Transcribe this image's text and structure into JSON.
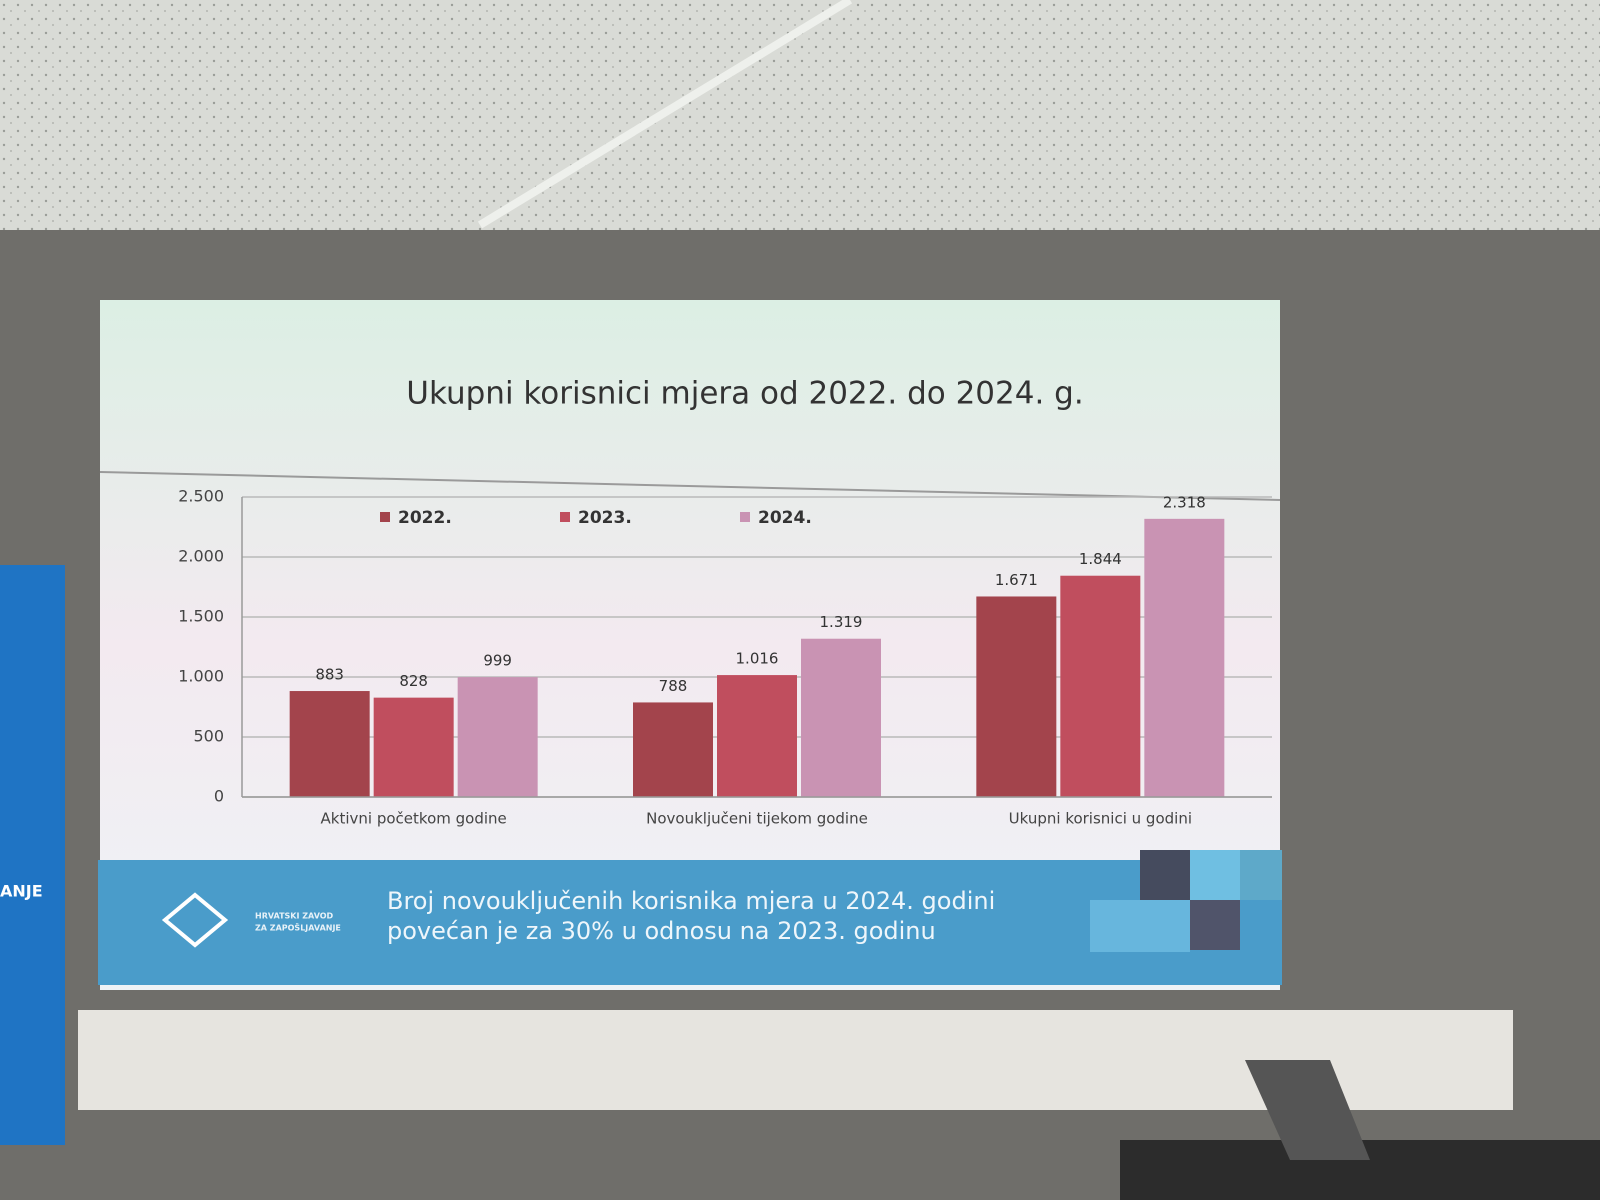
{
  "chart_data": {
    "type": "bar",
    "title": "Ukupni korisnici mjera od 2022. do 2024. g.",
    "categories": [
      "Aktivni početkom godine",
      "Novouključeni tijekom godine",
      "Ukupni korisnici u godini"
    ],
    "series": [
      {
        "name": "2022.",
        "color": "#a3444c",
        "values": [
          883,
          788,
          1671
        ],
        "value_labels": [
          "883",
          "788",
          "1.671"
        ]
      },
      {
        "name": "2023.",
        "color": "#c04e5e",
        "values": [
          828,
          1016,
          1844
        ],
        "value_labels": [
          "828",
          "1.016",
          "1.844"
        ]
      },
      {
        "name": "2024.",
        "color": "#c993b3",
        "values": [
          999,
          1319,
          2318
        ],
        "value_labels": [
          "999",
          "1.319",
          "2.318"
        ]
      }
    ],
    "ylim": [
      0,
      2500
    ],
    "yticks": [
      0,
      500,
      {
        "value": 1000,
        "label": "1.000"
      },
      {
        "value": 1500,
        "label": "1.500"
      },
      {
        "value": 2000,
        "label": "2.000"
      },
      {
        "value": 2500,
        "label": "2.500"
      }
    ],
    "grid": true,
    "legend": "top"
  },
  "banner": {
    "lines": [
      "Broj novouključenih korisnika mjera u 2024. godini",
      "povećan je za 30% u odnosu na 2023. godinu"
    ],
    "logo": [
      "HRVATSKI ZAVOD",
      "ZA ZAPOŠLJAVANJE"
    ]
  },
  "side_banner": "ANJE"
}
